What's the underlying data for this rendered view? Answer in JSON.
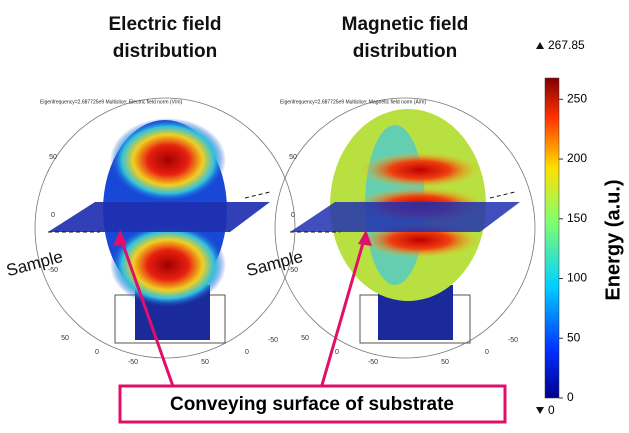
{
  "panels": [
    {
      "title": [
        "Electric field",
        "distribution"
      ],
      "header": "Eigenfrequency=2.687725e9   Multislice: Electric field norm (V/m)",
      "sample_label": "Sample",
      "y_ticks": [
        50,
        0,
        -50
      ],
      "x_ticks": [
        50,
        0,
        -50,
        50,
        0,
        -50
      ]
    },
    {
      "title": [
        "Magnetic field",
        "distribution"
      ],
      "header": "Eigenfrequency=2.687725e9   Multislice: Magnetic field norm (A/m)",
      "sample_label": "Sample",
      "y_ticks": [
        50,
        0,
        -50
      ],
      "x_ticks": [
        50,
        0,
        -50,
        50,
        0,
        -50
      ]
    }
  ],
  "colorbar": {
    "title": "Energy (a.u.)",
    "max": 267.85,
    "min": 0,
    "lim": [
      0,
      267.85
    ],
    "ticks": [
      0,
      50,
      100,
      150,
      200,
      250
    ]
  },
  "callout": "Conveying surface of substrate"
}
